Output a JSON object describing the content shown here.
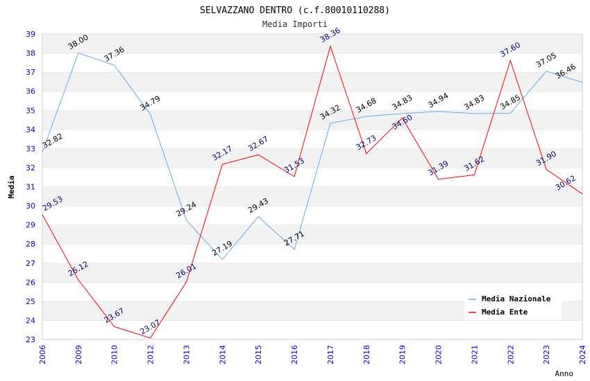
{
  "chart_data": {
    "type": "line",
    "title": "SELVAZZANO DENTRO (c.f.80010110288)",
    "subtitle": "Media Importi",
    "xlabel": "Anno",
    "ylabel": "Media",
    "ylim": [
      23,
      39
    ],
    "yticks": [
      "23",
      "24",
      "25",
      "26",
      "27",
      "28",
      "29",
      "30",
      "31",
      "32",
      "33",
      "34",
      "35",
      "36",
      "37",
      "38",
      "39"
    ],
    "categories": [
      "2006",
      "2009",
      "2010",
      "2012",
      "2013",
      "2014",
      "2015",
      "2016",
      "2017",
      "2018",
      "2019",
      "2020",
      "2021",
      "2022",
      "2023",
      "2024"
    ],
    "legend_position": "top-right",
    "series": [
      {
        "name": "Media Nazionale",
        "color": "#66aaee",
        "label_color": "#000000",
        "values": [
          32.82,
          38.0,
          37.36,
          34.79,
          29.24,
          27.19,
          29.43,
          27.71,
          34.32,
          34.68,
          34.83,
          34.94,
          34.83,
          34.85,
          37.05,
          36.46
        ],
        "labels": [
          "32.82",
          "38.00",
          "37.36",
          "34.79",
          "29.24",
          "27.19",
          "29.43",
          "27.71",
          "34.32",
          "34.68",
          "34.83",
          "34.94",
          "34.83",
          "34.85",
          "37.05",
          "36.46"
        ]
      },
      {
        "name": "Media Ente",
        "color": "#ff0000",
        "label_color": "#000080",
        "values": [
          29.53,
          26.12,
          23.67,
          23.07,
          26.01,
          32.17,
          32.67,
          31.53,
          38.36,
          32.73,
          34.6,
          31.39,
          31.62,
          37.6,
          31.9,
          30.62
        ],
        "labels": [
          "29.53",
          "26.12",
          "23.67",
          "23.07",
          "26.01",
          "32.17",
          "32.67",
          "31.53",
          "38.36",
          "32.73",
          "34.60",
          "31.39",
          "31.62",
          "37.60",
          "31.90",
          "30.62"
        ]
      }
    ]
  }
}
